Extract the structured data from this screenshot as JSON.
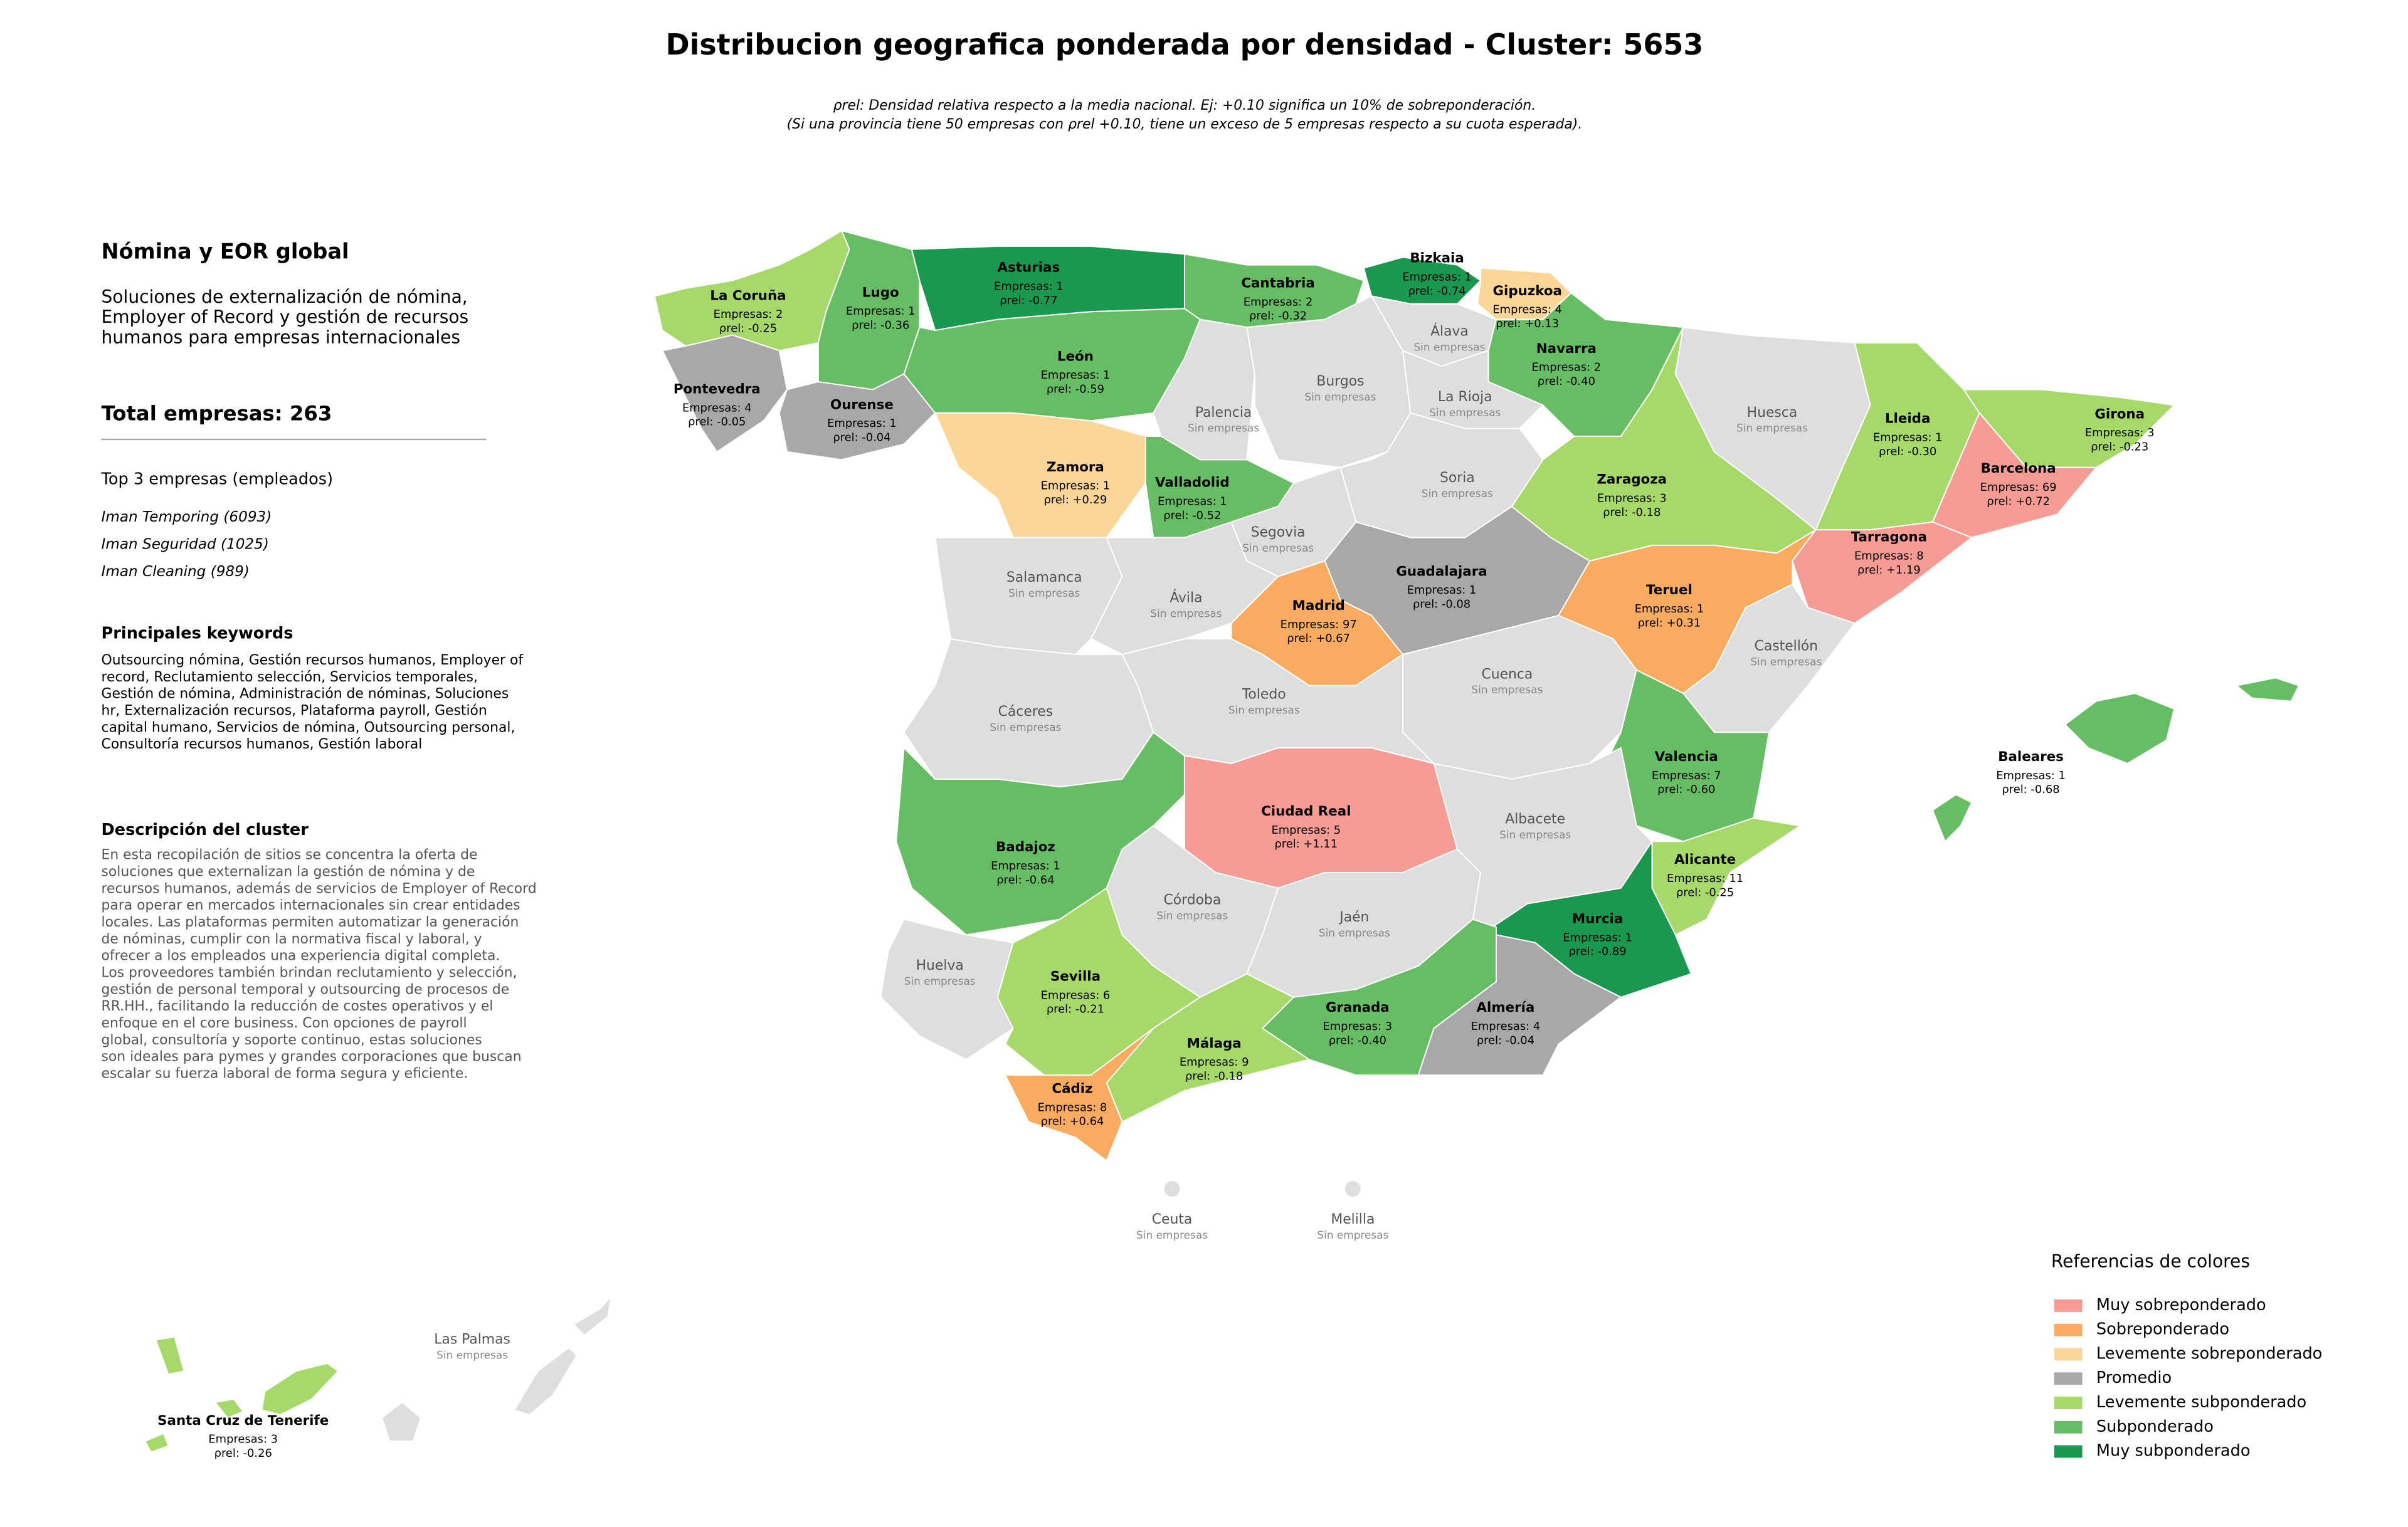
{
  "header": {
    "title": "Distribucion geografica ponderada por densidad - Cluster: 5653",
    "subtitle": [
      "ρrel: Densidad relativa respecto a la media nacional. Ej: +0.10 significa un 10% de sobreponderación.",
      "(Si una provincia tiene 50 empresas con ρrel +0.10, tiene un exceso de 5 empresas respecto a su cuota esperada)."
    ]
  },
  "panel": {
    "name": "Nómina y EOR global",
    "summary": [
      "Soluciones de externalización de nómina,",
      "Employer of Record y gestión de recursos",
      "humanos para empresas internacionales"
    ],
    "total": "Total empresas: 263",
    "top_title": "Top 3 empresas (empleados)",
    "top": [
      "Iman Temporing (6093)",
      "Iman Seguridad (1025)",
      "Iman Cleaning (989)"
    ],
    "keywords_title": "Principales keywords",
    "keywords": [
      "Outsourcing nómina, Gestión recursos humanos, Employer of",
      "record, Reclutamiento selección, Servicios temporales,",
      "Gestión de nómina, Administración de nóminas, Soluciones",
      "hr, Externalización recursos, Plataforma payroll, Gestión",
      "capital humano, Servicios de nómina, Outsourcing personal,",
      "Consultoría recursos humanos, Gestión laboral"
    ],
    "description_title": "Descripción del cluster",
    "description": [
      "En esta recopilación de sitios se concentra la oferta de",
      "soluciones que externalizan la gestión de nómina y de",
      "recursos humanos, además de servicios de Employer of Record",
      "para operar en mercados internacionales sin crear entidades",
      "locales. Las plataformas permiten automatizar la generación",
      "de nóminas, cumplir con la normativa fiscal y laboral, y",
      "ofrecer a los empleados una experiencia digital completa.",
      "Los proveedores también brindan reclutamiento y selección,",
      "gestión de personal temporal y outsourcing de procesos de",
      "RR.HH., facilitando la reducción de costes operativos y el",
      "enfoque en el core business. Con opciones de payroll",
      "global, consultoría y soporte continuo, estas soluciones",
      "son ideales para pymes y grandes corporaciones que buscan",
      "escalar su fuerza laboral de forma segura y eficiente."
    ]
  },
  "no_companies": "Sin empresas",
  "legend": {
    "title": "Referencias de colores",
    "items": [
      {
        "label": "Muy sobreponderado",
        "color": "#f79c95"
      },
      {
        "label": "Sobreponderado",
        "color": "#f9ab5f"
      },
      {
        "label": "Levemente sobreponderado",
        "color": "#fcd697"
      },
      {
        "label": "Promedio",
        "color": "#a8a8a8"
      },
      {
        "label": "Levemente subponderado",
        "color": "#a6d96a"
      },
      {
        "label": "Subponderado",
        "color": "#66bd63"
      },
      {
        "label": "Muy subponderado",
        "color": "#1a9850"
      }
    ]
  },
  "empty_color": "#dedede",
  "provinces": [
    {
      "name": "La Coruña",
      "companies": "Empresas: 2",
      "rho": "ρrel: -0.25",
      "level": 4
    },
    {
      "name": "Lugo",
      "companies": "Empresas: 1",
      "rho": "ρrel: -0.36",
      "level": 5
    },
    {
      "name": "Asturias",
      "companies": "Empresas: 1",
      "rho": "ρrel: -0.77",
      "level": 6
    },
    {
      "name": "Cantabria",
      "companies": "Empresas: 2",
      "rho": "ρrel: -0.32",
      "level": 5
    },
    {
      "name": "Bizkaia",
      "companies": "Empresas: 1",
      "rho": "ρrel: -0.74",
      "level": 6
    },
    {
      "name": "Gipuzkoa",
      "companies": "Empresas: 4",
      "rho": "ρrel: +0.13",
      "level": 2
    },
    {
      "name": "Álava",
      "level": null
    },
    {
      "name": "Navarra",
      "companies": "Empresas: 2",
      "rho": "ρrel: -0.40",
      "level": 5
    },
    {
      "name": "La Rioja",
      "level": null
    },
    {
      "name": "Pontevedra",
      "companies": "Empresas: 4",
      "rho": "ρrel: -0.05",
      "level": 3
    },
    {
      "name": "Ourense",
      "companies": "Empresas: 1",
      "rho": "ρrel: -0.04",
      "level": 3
    },
    {
      "name": "León",
      "companies": "Empresas: 1",
      "rho": "ρrel: -0.59",
      "level": 5
    },
    {
      "name": "Palencia",
      "level": null
    },
    {
      "name": "Burgos",
      "level": null
    },
    {
      "name": "Zamora",
      "companies": "Empresas: 1",
      "rho": "ρrel: +0.29",
      "level": 2
    },
    {
      "name": "Valladolid",
      "companies": "Empresas: 1",
      "rho": "ρrel: -0.52",
      "level": 5
    },
    {
      "name": "Soria",
      "level": null
    },
    {
      "name": "Segovia",
      "level": null
    },
    {
      "name": "Guadalajara",
      "companies": "Empresas: 1",
      "rho": "ρrel: -0.08",
      "level": 3
    },
    {
      "name": "Zaragoza",
      "companies": "Empresas: 3",
      "rho": "ρrel: -0.18",
      "level": 4
    },
    {
      "name": "Huesca",
      "level": null
    },
    {
      "name": "Lleida",
      "companies": "Empresas: 1",
      "rho": "ρrel: -0.30",
      "level": 4
    },
    {
      "name": "Girona",
      "companies": "Empresas: 3",
      "rho": "ρrel: -0.23",
      "level": 4
    },
    {
      "name": "Barcelona",
      "companies": "Empresas: 69",
      "rho": "ρrel: +0.72",
      "level": 0
    },
    {
      "name": "Tarragona",
      "companies": "Empresas: 8",
      "rho": "ρrel: +1.19",
      "level": 0
    },
    {
      "name": "Teruel",
      "companies": "Empresas: 1",
      "rho": "ρrel: +0.31",
      "level": 1
    },
    {
      "name": "Castellón",
      "level": null
    },
    {
      "name": "Salamanca",
      "level": null
    },
    {
      "name": "Ávila",
      "level": null
    },
    {
      "name": "Madrid",
      "companies": "Empresas: 97",
      "rho": "ρrel: +0.67",
      "level": 1
    },
    {
      "name": "Cuenca",
      "level": null
    },
    {
      "name": "Cáceres",
      "level": null
    },
    {
      "name": "Toledo",
      "level": null
    },
    {
      "name": "Valencia",
      "companies": "Empresas: 7",
      "rho": "ρrel: -0.60",
      "level": 5
    },
    {
      "name": "Albacete",
      "level": null
    },
    {
      "name": "Ciudad Real",
      "companies": "Empresas: 5",
      "rho": "ρrel: +1.11",
      "level": 0
    },
    {
      "name": "Badajoz",
      "companies": "Empresas: 1",
      "rho": "ρrel: -0.64",
      "level": 5
    },
    {
      "name": "Alicante",
      "companies": "Empresas: 11",
      "rho": "ρrel: -0.25",
      "level": 4
    },
    {
      "name": "Murcia",
      "companies": "Empresas: 1",
      "rho": "ρrel: -0.89",
      "level": 6
    },
    {
      "name": "Córdoba",
      "level": null
    },
    {
      "name": "Jaén",
      "level": null
    },
    {
      "name": "Huelva",
      "level": null
    },
    {
      "name": "Sevilla",
      "companies": "Empresas: 6",
      "rho": "ρrel: -0.21",
      "level": 4
    },
    {
      "name": "Granada",
      "companies": "Empresas: 3",
      "rho": "ρrel: -0.40",
      "level": 5
    },
    {
      "name": "Almería",
      "companies": "Empresas: 4",
      "rho": "ρrel: -0.04",
      "level": 3
    },
    {
      "name": "Málaga",
      "companies": "Empresas: 9",
      "rho": "ρrel: -0.18",
      "level": 4
    },
    {
      "name": "Cádiz",
      "companies": "Empresas: 8",
      "rho": "ρrel: +0.64",
      "level": 1
    },
    {
      "name": "Baleares",
      "companies": "Empresas: 1",
      "rho": "ρrel: -0.68",
      "level": 5
    },
    {
      "name": "Santa Cruz de Tenerife",
      "companies": "Empresas: 3",
      "rho": "ρrel: -0.26",
      "level": 4
    },
    {
      "name": "Las Palmas",
      "level": null
    },
    {
      "name": "Ceuta",
      "level": null
    },
    {
      "name": "Melilla",
      "level": null
    }
  ]
}
